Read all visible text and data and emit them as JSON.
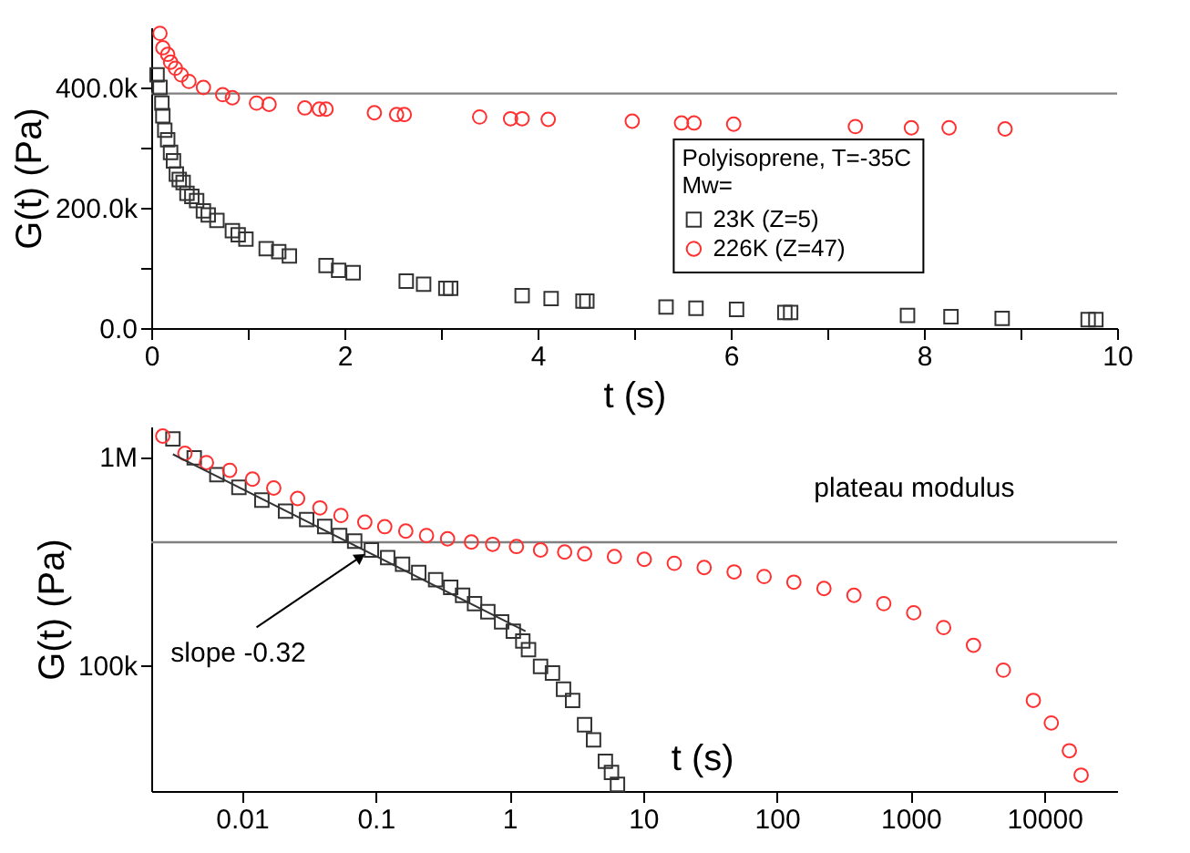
{
  "chart_data": [
    {
      "type": "scatter",
      "xlabel": "t (s)",
      "ylabel": "G(t) (Pa)",
      "legend_title": "Polyisoprene, T=-35C\nMw=",
      "legend": "right",
      "grid": false,
      "xlim": [
        0,
        10
      ],
      "xticks": [
        0,
        {
          "value": 1,
          "label": null
        },
        2,
        {
          "value": 3,
          "label": null
        },
        4,
        {
          "value": 5,
          "label": null
        },
        6,
        {
          "value": 7,
          "label": null
        },
        8,
        {
          "value": 9,
          "label": null
        },
        10
      ],
      "ylim": [
        0,
        500000
      ],
      "yticks": [
        {
          "value": 0,
          "label": "0.0"
        },
        {
          "value": 100000,
          "label": null
        },
        {
          "value": 200000,
          "label": "200.0k"
        },
        {
          "value": 300000,
          "label": null
        },
        {
          "value": 400000,
          "label": "400.0k"
        }
      ],
      "ref_lines": [
        {
          "axis": "y",
          "value": 390000,
          "color": "#808080"
        }
      ],
      "series": [
        {
          "name": "23K (Z=5)",
          "color": "#333333",
          "marker": "square",
          "x": [
            0.06,
            0.09,
            0.11,
            0.12,
            0.14,
            0.17,
            0.2,
            0.23,
            0.26,
            0.29,
            0.33,
            0.37,
            0.42,
            0.47,
            0.54,
            0.59,
            0.68,
            0.84,
            0.9,
            0.98,
            1.19,
            1.32,
            1.43,
            1.81,
            1.94,
            2.09,
            2.64,
            2.82,
            3.05,
            3.1,
            3.84,
            4.14,
            4.47,
            4.51,
            5.33,
            5.64,
            6.06,
            6.56,
            6.62,
            7.83,
            8.28,
            8.81,
            9.7,
            9.78
          ],
          "values": [
            421000,
            400000,
            374000,
            353000,
            329000,
            313000,
            292000,
            278000,
            256000,
            247000,
            242000,
            224000,
            219000,
            212000,
            195000,
            188000,
            179000,
            162000,
            155000,
            148000,
            132000,
            127000,
            120000,
            104000,
            96000,
            92000,
            78000,
            73000,
            66000,
            66000,
            54000,
            49000,
            45000,
            45000,
            35000,
            33000,
            31000,
            26000,
            26000,
            21000,
            19000,
            16000,
            14000,
            14000
          ]
        },
        {
          "name": "226K (Z=47)",
          "color": "#ff3030",
          "marker": "circle",
          "x": [
            0.09,
            0.12,
            0.17,
            0.2,
            0.25,
            0.31,
            0.39,
            0.54,
            0.74,
            0.84,
            1.09,
            1.22,
            1.59,
            1.74,
            1.81,
            2.31,
            2.54,
            2.62,
            3.4,
            3.72,
            3.84,
            4.11,
            4.98,
            5.49,
            5.62,
            6.03,
            7.29,
            7.87,
            8.26,
            8.84
          ],
          "values": [
            490000,
            466000,
            455000,
            442000,
            432000,
            421000,
            410000,
            400000,
            388000,
            383000,
            374000,
            372000,
            366000,
            364000,
            364000,
            358000,
            355000,
            355000,
            351000,
            348000,
            348000,
            347000,
            344000,
            341000,
            341000,
            339000,
            335000,
            333000,
            333000,
            331000
          ]
        }
      ]
    },
    {
      "type": "scatter",
      "xlabel": "t (s)",
      "ylabel": "G(t) (Pa)",
      "legend": false,
      "grid": false,
      "log": "xy",
      "xlim": [
        0.0021,
        35000
      ],
      "xticks": [
        0.01,
        0.1,
        1,
        10,
        100,
        1000,
        10000
      ],
      "ylim": [
        25000,
        1400000
      ],
      "yticks": [
        {
          "value": 100000,
          "label": "100k"
        },
        {
          "value": 1000000,
          "label": "1M"
        }
      ],
      "ref_lines": [
        {
          "axis": "y",
          "value": 390000,
          "label": "plateau modulus",
          "color": "#808080"
        }
      ],
      "annotations": [
        {
          "text": "slope -0.32",
          "x": 0.09,
          "y": 355000
        }
      ],
      "series": [
        {
          "color": "#333333",
          "marker": "square",
          "x": [
            0.00305,
            0.0044,
            0.0065,
            0.0095,
            0.0141,
            0.0212,
            0.0305,
            0.0416,
            0.0538,
            0.0697,
            0.093,
            0.123,
            0.159,
            0.21,
            0.281,
            0.364,
            0.447,
            0.549,
            0.69,
            0.875,
            1.07,
            1.26,
            1.39,
            1.71,
            2.1,
            2.54,
            2.97,
            3.65,
            4.26,
            5.22,
            5.8,
            6.43
          ],
          "values": [
            1220000,
            990000,
            822000,
            715000,
            621000,
            550000,
            501000,
            464000,
            420000,
            395000,
            358000,
            329000,
            306000,
            279000,
            258000,
            237000,
            217000,
            198000,
            181000,
            162000,
            146000,
            131000,
            119000,
            99000,
            92000,
            77000,
            68000,
            52000,
            44000,
            34700,
            30700,
            26900
          ]
        },
        {
          "color": "#ff3030",
          "marker": "circle",
          "x": [
            0.00256,
            0.00375,
            0.00543,
            0.0081,
            0.012,
            0.0173,
            0.0261,
            0.0383,
            0.055,
            0.083,
            0.117,
            0.168,
            0.24,
            0.345,
            0.52,
            0.75,
            1.13,
            1.71,
            2.59,
            3.65,
            6.1,
            10.2,
            17.1,
            28.6,
            47.9,
            80.3,
            134,
            225,
            377,
            630,
            1055,
            1766,
            2953,
            4940,
            8275,
            11270,
            15380,
            18840
          ],
          "values": [
            1260000,
            1040000,
            940000,
            863000,
            783000,
            710000,
            632000,
            570000,
            524000,
            487000,
            463000,
            441000,
            420000,
            405000,
            391000,
            381000,
            372000,
            358000,
            350000,
            343000,
            333000,
            323000,
            309000,
            295000,
            281000,
            267000,
            251000,
            234000,
            217000,
            198000,
            179000,
            152000,
            125000,
            95000,
            68000,
            53000,
            39000,
            29800
          ]
        },
        {
          "type": "line",
          "color": "#333333",
          "line_style": "solid",
          "x": [
            0.00305,
            1.32
          ],
          "values": [
            1030000,
            146000
          ]
        }
      ]
    }
  ]
}
